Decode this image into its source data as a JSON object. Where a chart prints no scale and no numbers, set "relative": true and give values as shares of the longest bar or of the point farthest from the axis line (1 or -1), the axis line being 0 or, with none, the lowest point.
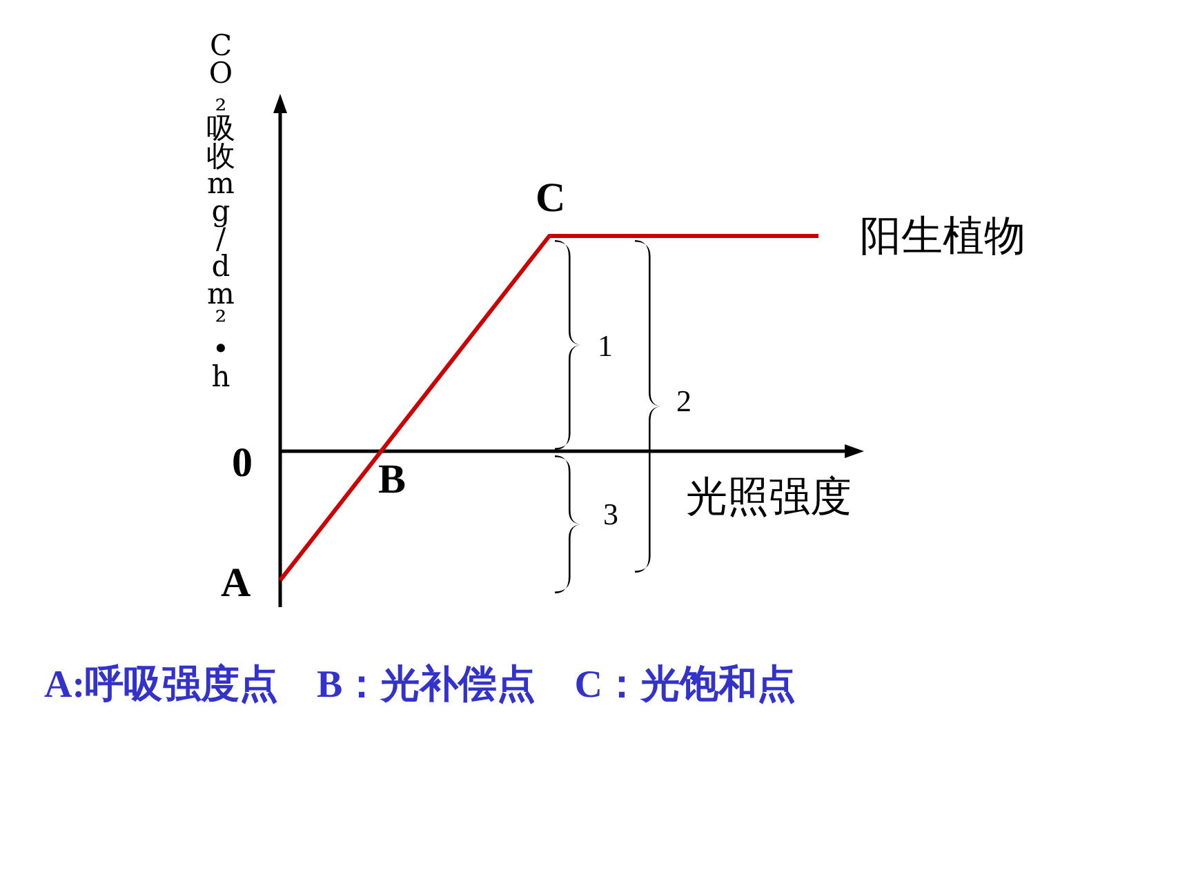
{
  "chart_data": {
    "type": "line",
    "relative": true,
    "xlabel": "光照强度",
    "ylabel": "CO₂吸收mg/dm²•h",
    "categories": [
      null,
      null,
      null,
      null,
      null,
      null,
      null
    ],
    "series": [
      {
        "name": "阳生植物",
        "color": "#cc0000",
        "values": [
          -0.6,
          -0.067,
          0.467,
          1,
          1,
          1,
          1
        ]
      }
    ],
    "annotations": [
      "A",
      "B",
      "C",
      "0",
      "1",
      "2",
      "3",
      "A:呼吸强度点　B：光补偿点　C：光饱和点"
    ]
  }
}
